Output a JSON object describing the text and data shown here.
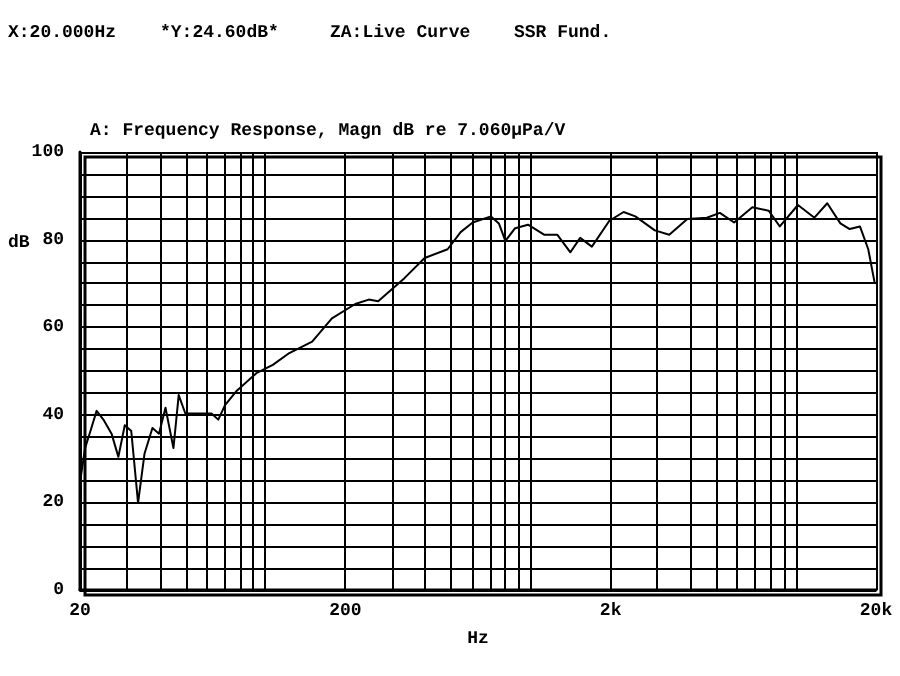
{
  "chart_data": {
    "type": "line",
    "title": "A: Frequency Response, Magn dB re 7.060µPa/V",
    "xlabel": "Hz",
    "ylabel": "dB",
    "annotations": [
      "X:20.000Hz",
      "*Y:24.60dB*",
      "ZA:Live Curve",
      "SSR Fund."
    ],
    "log": "x",
    "grid": true,
    "marker": "none",
    "line_style": "solid",
    "xlim": [
      20,
      20000
    ],
    "xticks": [
      20,
      {
        "value": 30,
        "label": null
      },
      {
        "value": 40,
        "label": null
      },
      {
        "value": 50,
        "label": null
      },
      {
        "value": 60,
        "label": null
      },
      {
        "value": 70,
        "label": null
      },
      {
        "value": 80,
        "label": null
      },
      {
        "value": 90,
        "label": null
      },
      {
        "value": 100,
        "label": null
      },
      200,
      {
        "value": 300,
        "label": null
      },
      {
        "value": 400,
        "label": null
      },
      {
        "value": 500,
        "label": null
      },
      {
        "value": 600,
        "label": null
      },
      {
        "value": 700,
        "label": null
      },
      {
        "value": 800,
        "label": null
      },
      {
        "value": 900,
        "label": null
      },
      {
        "value": 1000,
        "label": null
      },
      {
        "value": 2000,
        "label": "2k"
      },
      {
        "value": 3000,
        "label": null
      },
      {
        "value": 4000,
        "label": null
      },
      {
        "value": 5000,
        "label": null
      },
      {
        "value": 6000,
        "label": null
      },
      {
        "value": 7000,
        "label": null
      },
      {
        "value": 8000,
        "label": null
      },
      {
        "value": 9000,
        "label": null
      },
      {
        "value": 10000,
        "label": null
      },
      {
        "value": 20000,
        "label": "20k"
      }
    ],
    "ylim": [
      0,
      100
    ],
    "yticks": [
      0,
      {
        "value": 5,
        "label": null
      },
      {
        "value": 10,
        "label": null
      },
      {
        "value": 15,
        "label": null
      },
      20,
      {
        "value": 25,
        "label": null
      },
      {
        "value": 30,
        "label": null
      },
      {
        "value": 35,
        "label": null
      },
      40,
      {
        "value": 45,
        "label": null
      },
      {
        "value": 50,
        "label": null
      },
      {
        "value": 55,
        "label": null
      },
      60,
      {
        "value": 65,
        "label": null
      },
      {
        "value": 70,
        "label": null
      },
      {
        "value": 75,
        "label": null
      },
      80,
      {
        "value": 85,
        "label": null
      },
      {
        "value": 90,
        "label": null
      },
      {
        "value": 95,
        "label": null
      },
      100
    ],
    "x": [
      20,
      20.9,
      21.9,
      23.1,
      24.5,
      26.3,
      27.9,
      29.5,
      31.2,
      33.1,
      35,
      37.5,
      39.7,
      42,
      45,
      47.1,
      49.9,
      55.3,
      62.6,
      66.4,
      70.4,
      78,
      92.4,
      106.6,
      123,
      150,
      178,
      218,
      245,
      266,
      290,
      334,
      398,
      486,
      544,
      604,
      708,
      758,
      802,
      873,
      976,
      1126,
      1260,
      1410,
      1535,
      1699,
      1978,
      2238,
      2478,
      2934,
      3326,
      3890,
      4610,
      5160,
      5840,
      6840,
      7880,
      8680,
      10160,
      11720,
      13100,
      14680,
      15920,
      17400,
      18700,
      19800
    ],
    "series": [
      {
        "color": "#000000",
        "values": [
          24.6,
          32.4,
          36.3,
          40.9,
          38.9,
          35.7,
          30.4,
          37.6,
          36.3,
          19.9,
          31.1,
          37,
          35.7,
          41.6,
          32.4,
          44.5,
          40.3,
          40.3,
          40.3,
          38.9,
          42.2,
          45.5,
          49.5,
          51.4,
          54.1,
          56.7,
          62,
          65.3,
          66.3,
          65.9,
          67.9,
          71.2,
          75.8,
          77.8,
          81.7,
          83.9,
          85.3,
          83.7,
          79.7,
          82.6,
          83.4,
          81.1,
          81.1,
          77.1,
          80.4,
          78.4,
          84.3,
          86.3,
          85.3,
          82.1,
          81.1,
          84.7,
          85,
          86.1,
          83.9,
          87.4,
          86.6,
          83,
          87.9,
          85,
          88.3,
          83.7,
          82.4,
          83,
          77.8,
          69.9
        ]
      }
    ]
  }
}
